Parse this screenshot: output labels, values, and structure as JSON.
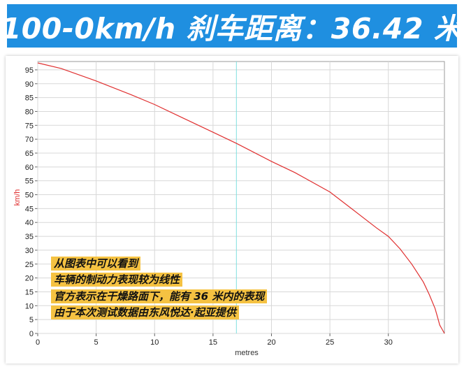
{
  "banner": {
    "title": "100-0km/h 刹车距离：36.42 米",
    "background": "#1f8fe0"
  },
  "annotations": [
    "从图表中可以看到",
    "车辆的制动力表现较为线性",
    "官方表示在干燥路面下，能有 36 米内的表现",
    "由于本次测试数据由东风悦达·起亚提供"
  ],
  "chart_data": {
    "type": "line",
    "xlabel": "metres",
    "ylabel": "km/h",
    "xlim": [
      0,
      34.8
    ],
    "ylim": [
      0,
      98
    ],
    "x_ticks": [
      0,
      5,
      10,
      15,
      20,
      25,
      30
    ],
    "y_ticks": [
      0,
      5,
      10,
      15,
      20,
      25,
      30,
      35,
      40,
      45,
      50,
      55,
      60,
      65,
      70,
      75,
      80,
      85,
      90,
      95
    ],
    "grid": true,
    "line_color": "#e03030",
    "marker_x": 17,
    "marker_color": "#7fe0e0",
    "series": [
      {
        "x": [
          0,
          2,
          5,
          8,
          10,
          12,
          15,
          17,
          20,
          22,
          25,
          27,
          29,
          30,
          31,
          32,
          33,
          33.5,
          34,
          34.2,
          34.4,
          34.6,
          34.8
        ],
        "y": [
          97.5,
          95.5,
          91,
          86,
          82.5,
          78.5,
          72.5,
          68.5,
          62,
          58,
          51,
          44.5,
          38,
          35,
          30.5,
          25,
          18.5,
          14,
          9,
          6,
          3,
          1.5,
          0
        ]
      }
    ]
  }
}
